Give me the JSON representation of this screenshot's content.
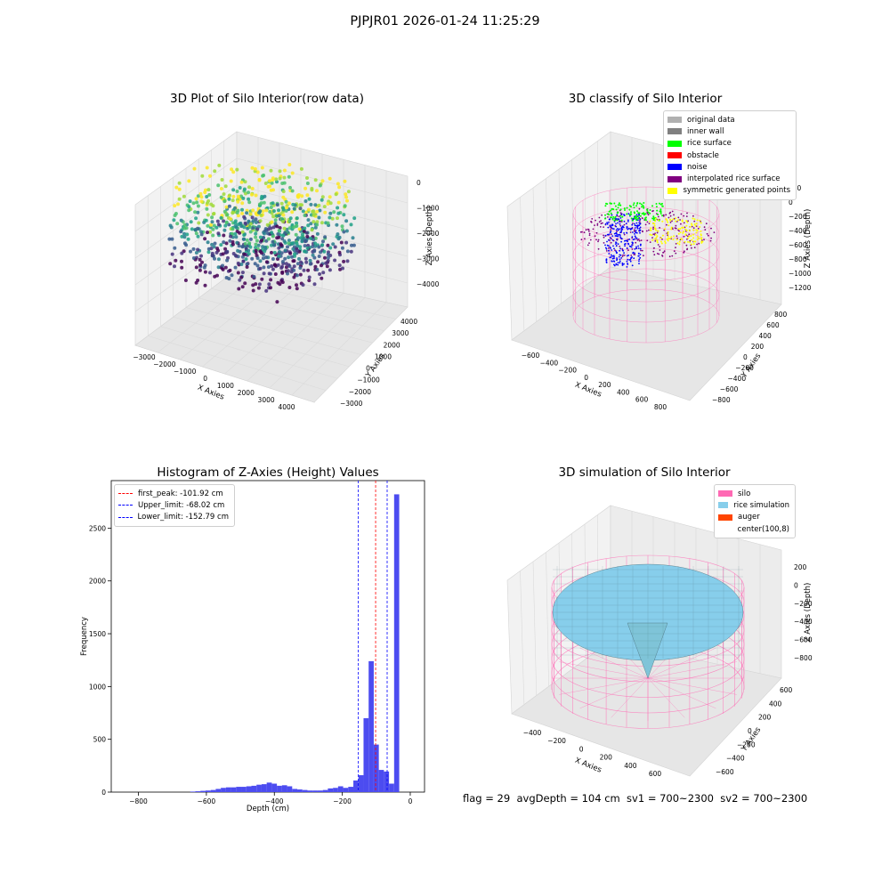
{
  "figure": {
    "suptitle": "PJPJR01 2026-01-24 11:25:29",
    "status_text": "flag = 29  avgDepth = 104 cm  sv1 = 700~2300  sv2 = 700~2300"
  },
  "colors": {
    "pane": "#f2f2f2",
    "pane_grid": "#e0e0e0",
    "histogram_bar": "#4c4cf0",
    "silo_wire": "#ff69b4",
    "rice_surface": "#87ceeb"
  },
  "chart_data": [
    {
      "type": "scatter3d",
      "title": "3D Plot of Silo Interior(row data)",
      "xlabel": "X Axies",
      "ylabel": "Y Axies",
      "zlabel": "Z Axies (Depth)",
      "xticks": [
        "−3000",
        "−2000",
        "−1000",
        "0",
        "1000",
        "2000",
        "3000",
        "4000"
      ],
      "yticks": [
        "−3000",
        "−2000",
        "−1000",
        "0",
        "1000",
        "2000",
        "3000",
        "4000"
      ],
      "zticks": [
        "0",
        "−1000",
        "−2000",
        "−3000",
        "−4000"
      ],
      "colormap": "viridis",
      "color_by": "z"
    },
    {
      "type": "scatter3d",
      "title": "3D classify of Silo Interior",
      "xlabel": "X Axies",
      "ylabel": "Y Axies",
      "zlabel": "Z Axies (Depth)",
      "xticks": [
        "−600",
        "−400",
        "−200",
        "0",
        "200",
        "400",
        "600",
        "800"
      ],
      "yticks": [
        "−800",
        "−600",
        "−400",
        "−200",
        "0",
        "200",
        "400",
        "600",
        "800"
      ],
      "zticks": [
        "200",
        "0",
        "−200",
        "−400",
        "−600",
        "−800",
        "−1000",
        "−1200"
      ],
      "legend_position": "upper right",
      "legend": [
        {
          "label": "original data",
          "color": "#b0b0b0"
        },
        {
          "label": "inner wall",
          "color": "#808080"
        },
        {
          "label": "rice surface",
          "color": "#00ff00"
        },
        {
          "label": "obstacle",
          "color": "#ff0000"
        },
        {
          "label": "noise",
          "color": "#0000ff"
        },
        {
          "label": "interpolated rice surface",
          "color": "#800080"
        },
        {
          "label": "symmetric generated points",
          "color": "#ffff00"
        }
      ]
    },
    {
      "type": "bar",
      "title": "Histogram of Z-Axies (Height) Values",
      "xlabel": "Depth (cm)",
      "ylabel": "Frequency",
      "xlim": [
        -880,
        42
      ],
      "ylim": [
        0,
        2950
      ],
      "xticks": [
        -800,
        -600,
        -400,
        -200,
        0
      ],
      "yticks": [
        0,
        500,
        1000,
        1500,
        2000,
        2500
      ],
      "bin_width": 15,
      "bins": [
        {
          "x": -640,
          "count": 5
        },
        {
          "x": -625,
          "count": 8
        },
        {
          "x": -610,
          "count": 12
        },
        {
          "x": -595,
          "count": 15
        },
        {
          "x": -580,
          "count": 20
        },
        {
          "x": -565,
          "count": 30
        },
        {
          "x": -550,
          "count": 40
        },
        {
          "x": -535,
          "count": 45
        },
        {
          "x": -520,
          "count": 45
        },
        {
          "x": -505,
          "count": 50
        },
        {
          "x": -490,
          "count": 50
        },
        {
          "x": -475,
          "count": 55
        },
        {
          "x": -460,
          "count": 60
        },
        {
          "x": -445,
          "count": 70
        },
        {
          "x": -430,
          "count": 75
        },
        {
          "x": -415,
          "count": 90
        },
        {
          "x": -400,
          "count": 80
        },
        {
          "x": -385,
          "count": 60
        },
        {
          "x": -370,
          "count": 65
        },
        {
          "x": -355,
          "count": 55
        },
        {
          "x": -340,
          "count": 30
        },
        {
          "x": -325,
          "count": 25
        },
        {
          "x": -310,
          "count": 20
        },
        {
          "x": -295,
          "count": 15
        },
        {
          "x": -280,
          "count": 15
        },
        {
          "x": -265,
          "count": 15
        },
        {
          "x": -250,
          "count": 20
        },
        {
          "x": -235,
          "count": 35
        },
        {
          "x": -220,
          "count": 40
        },
        {
          "x": -205,
          "count": 55
        },
        {
          "x": -190,
          "count": 40
        },
        {
          "x": -175,
          "count": 50
        },
        {
          "x": -160,
          "count": 110
        },
        {
          "x": -145,
          "count": 160
        },
        {
          "x": -130,
          "count": 700
        },
        {
          "x": -115,
          "count": 1240
        },
        {
          "x": -100,
          "count": 450
        },
        {
          "x": -85,
          "count": 210
        },
        {
          "x": -70,
          "count": 195
        },
        {
          "x": -55,
          "count": 80
        },
        {
          "x": -40,
          "count": 2820
        }
      ],
      "vlines": [
        {
          "label": "first_peak: -101.92 cm",
          "x": -101.92,
          "color": "#ff0000"
        },
        {
          "label": "Upper_limit: -68.02 cm",
          "x": -68.02,
          "color": "#0000ff"
        },
        {
          "label": "Lower_limit: -152.79 cm",
          "x": -152.79,
          "color": "#0000ff"
        }
      ]
    },
    {
      "type": "surface3d",
      "title": "3D simulation of Silo Interior",
      "xlabel": "X Axies",
      "ylabel": "Y Axies",
      "zlabel": "Z Axies (Depth)",
      "xticks": [
        "−400",
        "−200",
        "0",
        "200",
        "400",
        "600"
      ],
      "yticks": [
        "−600",
        "−400",
        "−200",
        "0",
        "200",
        "400",
        "600"
      ],
      "zticks": [
        "200",
        "0",
        "−200",
        "−400",
        "−600",
        "−800"
      ],
      "legend_position": "upper right",
      "legend": [
        {
          "label": "silo",
          "color": "#ff69b4"
        },
        {
          "label": "rice simulation",
          "color": "#87ceeb"
        },
        {
          "label": "auger",
          "color": "#ff4500"
        },
        {
          "label": "center(100,8)",
          "color": ""
        }
      ]
    }
  ]
}
